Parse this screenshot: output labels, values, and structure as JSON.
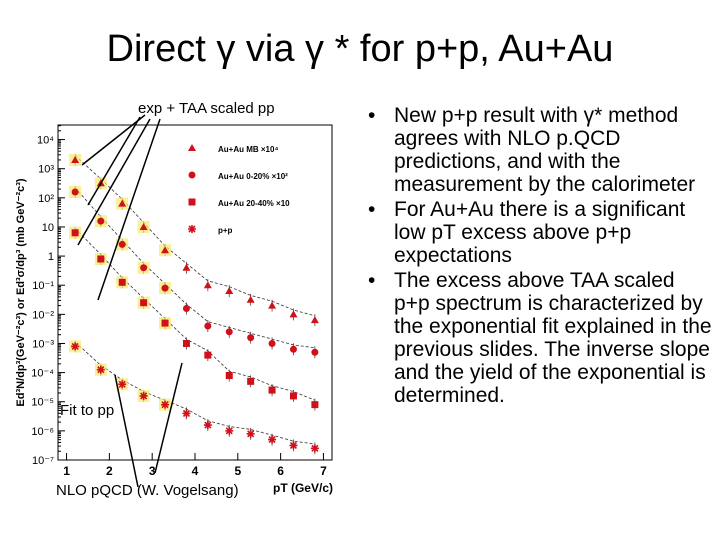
{
  "slide": {
    "title": "Direct γ via γ * for p+p, Au+Au"
  },
  "annotations": {
    "exp": "exp + TAA scaled pp",
    "fit": "Fit to pp",
    "nlo": "NLO pQCD (W. Vogelsang)"
  },
  "chart_data": {
    "type": "scatter",
    "ylabel": "Ed³N/dp³(GeV⁻²c³) or Ed³σ/dp³ (mb GeV⁻²c³)",
    "xlabel": "pT (GeV/c)",
    "xlim": [
      0.8,
      7.2
    ],
    "ylim_log10": [
      -7,
      4.5
    ],
    "log_y": true,
    "x_ticks": [
      "1",
      "2",
      "3",
      "4",
      "5",
      "6",
      "7"
    ],
    "y_ticks": [
      "10⁴",
      "10³",
      "10²",
      "10",
      "1",
      "10⁻¹",
      "10⁻²",
      "10⁻³",
      "10⁻⁴",
      "10⁻⁵",
      "10⁻⁶",
      "10⁻⁷"
    ],
    "legend_position": "top-right",
    "series": [
      {
        "name": "Au+Au MB ×10⁴",
        "color": "#d0101a",
        "marker": "triangle",
        "x": [
          1.2,
          1.8,
          2.3,
          2.8,
          3.3,
          3.8,
          4.3,
          4.8,
          5.3,
          5.8,
          6.3,
          6.8
        ],
        "y": [
          3.3,
          2.5,
          1.8,
          1.0,
          0.2,
          -0.4,
          -1.0,
          -1.2,
          -1.5,
          -1.7,
          -2.0,
          -2.2
        ]
      },
      {
        "name": "Au+Au 0-20% ×10²",
        "color": "#d0101a",
        "marker": "circle",
        "x": [
          1.2,
          1.8,
          2.3,
          2.8,
          3.3,
          3.8,
          4.3,
          4.8,
          5.3,
          5.8,
          6.3,
          6.8
        ],
        "y": [
          2.2,
          1.2,
          0.4,
          -0.4,
          -1.1,
          -1.8,
          -2.4,
          -2.6,
          -2.8,
          -3.0,
          -3.2,
          -3.3
        ]
      },
      {
        "name": "Au+Au 20-40% ×10",
        "color": "#d0101a",
        "marker": "square",
        "x": [
          1.2,
          1.8,
          2.3,
          2.8,
          3.3,
          3.8,
          4.3,
          4.8,
          5.3,
          5.8,
          6.3,
          6.8
        ],
        "y": [
          0.8,
          -0.1,
          -0.9,
          -1.6,
          -2.3,
          -3.0,
          -3.4,
          -4.1,
          -4.3,
          -4.6,
          -4.8,
          -5.1
        ]
      },
      {
        "name": "p+p",
        "color": "#d0101a",
        "marker": "star",
        "x": [
          1.2,
          1.8,
          2.3,
          2.8,
          3.3,
          3.8,
          4.3,
          4.8,
          5.3,
          5.8,
          6.3,
          6.8
        ],
        "y": [
          -3.1,
          -3.9,
          -4.4,
          -4.8,
          -5.1,
          -5.4,
          -5.8,
          -6.0,
          -6.1,
          -6.3,
          -6.5,
          -6.6
        ]
      }
    ]
  },
  "bullets": [
    {
      "text": "New p+p result with γ* method agrees with NLO p.QCD predictions, and with the measurement by the calorimeter"
    },
    {
      "text": "For Au+Au there is a significant low pT excess above p+p expectations"
    },
    {
      "text": "The excess above TAA scaled p+p spectrum is characterized by the exponential fit explained in the previous slides. The inverse slope and the yield of the exponential is determined."
    }
  ]
}
